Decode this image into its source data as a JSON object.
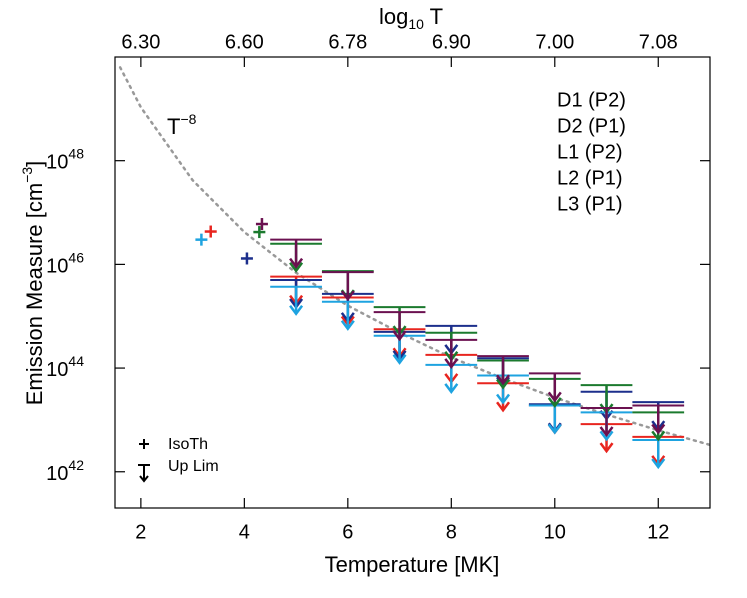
{
  "chart_data": {
    "type": "upper-limit-scatter",
    "xlabel": "Temperature [MK]",
    "ylabel": {
      "text": "Emission Measure [cm",
      "sup": "−3",
      "end": "]"
    },
    "x2label": {
      "text": "log",
      "sub": "10",
      "end": " T"
    },
    "xlim": [
      1.5,
      13
    ],
    "ylim": [
      2e+41,
      1e+50
    ],
    "log_y": true,
    "xticks": [
      2,
      4,
      6,
      8,
      10,
      12
    ],
    "x2ticks": [
      {
        "value": 2,
        "label": "6.30"
      },
      {
        "value": 4,
        "label": "6.60"
      },
      {
        "value": 6,
        "label": "6.78"
      },
      {
        "value": 8,
        "label": "6.90"
      },
      {
        "value": 10,
        "label": "7.00"
      },
      {
        "value": 12,
        "label": "7.08"
      }
    ],
    "yticks": [
      {
        "value": 1e+42,
        "label": "10",
        "exponent": "42"
      },
      {
        "value": 1e+44,
        "label": "10",
        "exponent": "44"
      },
      {
        "value": 1e+46,
        "label": "10",
        "exponent": "46"
      },
      {
        "value": 1e+48,
        "label": "10",
        "exponent": "48"
      }
    ],
    "reference": {
      "label": "T",
      "sup": "−8",
      "color": "#999999",
      "x": [
        1.6,
        2,
        3,
        4,
        5,
        6,
        7,
        8,
        9,
        10,
        11,
        12,
        13
      ],
      "values": [
        6.3e+49,
        1.07e+49,
        4.2e+47,
        4.2e+46,
        6.9e+45,
        1.6e+45,
        4.8e+44,
        1.6e+44,
        6.3e+43,
        2.7e+43,
        1.27e+43,
        6.3e+42,
        3.3e+42
      ]
    },
    "symbol_legend": {
      "iso": "IsoTh",
      "limit": "Up Lim"
    },
    "series": [
      {
        "name": "D1 (P2)",
        "color": "#e8251f",
        "iso_x": 3.35,
        "iso_value": 4.3e+46,
        "x": [
          5,
          6,
          7,
          8,
          9,
          10,
          11,
          12
        ],
        "values": [
          5.8e+45,
          2.3e+45,
          5.6e+44,
          1.8e+44,
          5.1e+43,
          1.9e+43,
          8.3e+42,
          4.7e+42
        ]
      },
      {
        "name": "D2 (P1)",
        "color": "#1c2f8c",
        "iso_x": 4.05,
        "iso_value": 1.3e+46,
        "x": [
          5,
          6,
          7,
          8,
          9,
          10,
          11,
          12
        ],
        "values": [
          5e+45,
          2.7e+45,
          5e+44,
          6.5e+44,
          1.55e+44,
          2e+43,
          3.5e+43,
          2.2e+43
        ]
      },
      {
        "name": "L1 (P2)",
        "color": "#1ea3e0",
        "iso_x": 3.17,
        "iso_value": 3e+46,
        "x": [
          5,
          6,
          7,
          8,
          9,
          10,
          11,
          12
        ],
        "values": [
          3.7e+45,
          1.9e+45,
          4.2e+44,
          1.15e+44,
          7.2e+43,
          1.9e+43,
          1.4e+43,
          4.1e+42
        ]
      },
      {
        "name": "L2 (P1)",
        "color": "#1b7a2e",
        "iso_x": 4.29,
        "iso_value": 4.2e+46,
        "x": [
          5,
          6,
          7,
          8,
          9,
          10,
          11,
          12
        ],
        "values": [
          2.5e+46,
          7.4e+45,
          1.5e+45,
          4.8e+44,
          1.4e+44,
          6.2e+43,
          4.7e+43,
          1.4e+43
        ]
      },
      {
        "name": "L3 (P1)",
        "color": "#6b1150",
        "iso_x": 4.34,
        "iso_value": 6e+46,
        "x": [
          5,
          6,
          7,
          8,
          9,
          10,
          11,
          12
        ],
        "values": [
          3e+46,
          7.1e+45,
          1.2e+45,
          3.5e+44,
          1.7e+44,
          7.9e+43,
          1.7e+43,
          1.9e+43
        ]
      }
    ]
  }
}
